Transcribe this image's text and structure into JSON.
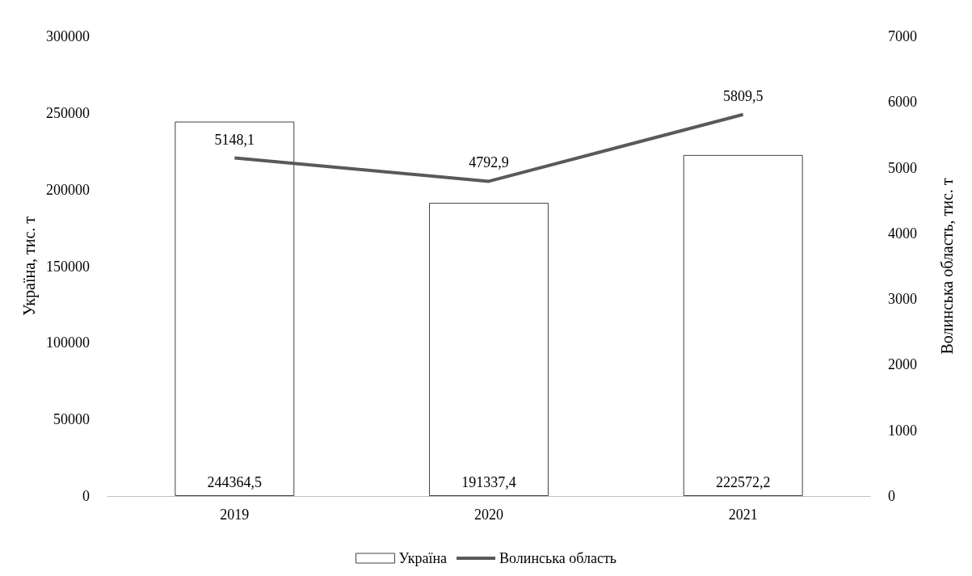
{
  "chart_data": {
    "type": "bar",
    "categories": [
      "2019",
      "2020",
      "2021"
    ],
    "series": [
      {
        "name": "Україна",
        "color": "#ffffff",
        "values": [
          244364.5,
          191337.4,
          222572.2
        ],
        "value_labels": [
          "244364,5",
          "191337,4",
          "222572,2"
        ]
      },
      {
        "name": "Волинська область",
        "type": "line",
        "axis": "y2",
        "color": "#595959",
        "values": [
          5148.1,
          4792.9,
          5809.5
        ],
        "value_labels": [
          "5148,1",
          "4792,9",
          "5809,5"
        ],
        "marker": "none"
      }
    ],
    "ylabel": "Україна, тис. т",
    "y2label": "Волинська область, тис. т",
    "ylim": [
      0,
      300000
    ],
    "yticks": [
      0,
      50000,
      100000,
      150000,
      200000,
      250000,
      300000
    ],
    "y2lim": [
      0,
      7000
    ],
    "y2ticks": [
      0,
      1000,
      2000,
      3000,
      4000,
      5000,
      6000,
      7000
    ],
    "grid": false,
    "legend": "bottom"
  }
}
